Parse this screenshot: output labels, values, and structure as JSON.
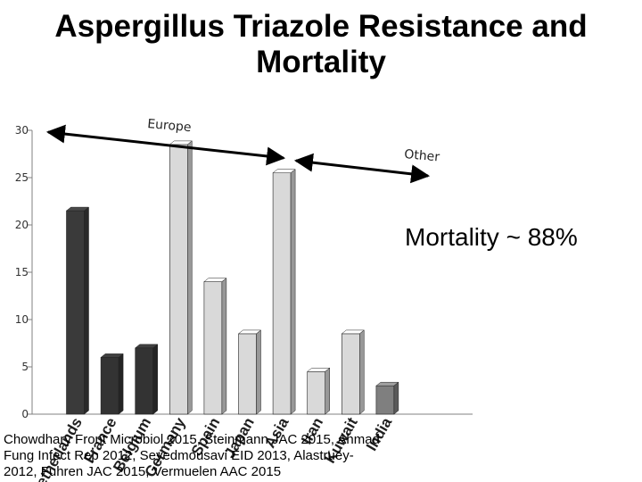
{
  "title_lines": [
    "Aspergillus Triazole Resistance and",
    "Mortality"
  ],
  "group_labels": [
    "Europe",
    "Other"
  ],
  "annotation": "Mortality ~ 88%",
  "citation": [
    "Chowdhary Front Microbiol 2015, Steinmann JAC 2015, Ahmad",
    "Fung Infect Rep 2012, Seyedmousavi EID 2013, Alastruey-",
    "2012, Fuhren JAC 2015, Vermuelen AAC 2015"
  ],
  "colors": {
    "europe_bars": "#3a3a3a",
    "other_bars": "#d9d9d9",
    "last_bar": "#7f7f7f"
  },
  "chart_data": {
    "type": "bar",
    "categories": [
      "Netherlands",
      "France",
      "Belgium",
      "Germany",
      "Spain",
      "Japan",
      "Asia",
      "Iran",
      "Kuwait",
      "India"
    ],
    "values": [
      21.5,
      6,
      7,
      28.5,
      14,
      8.5,
      25.5,
      4.5,
      8.5,
      3
    ],
    "yticks": [
      0,
      5,
      10,
      15,
      20,
      25,
      30
    ],
    "ylim": [
      0,
      30
    ],
    "grid": false
  }
}
